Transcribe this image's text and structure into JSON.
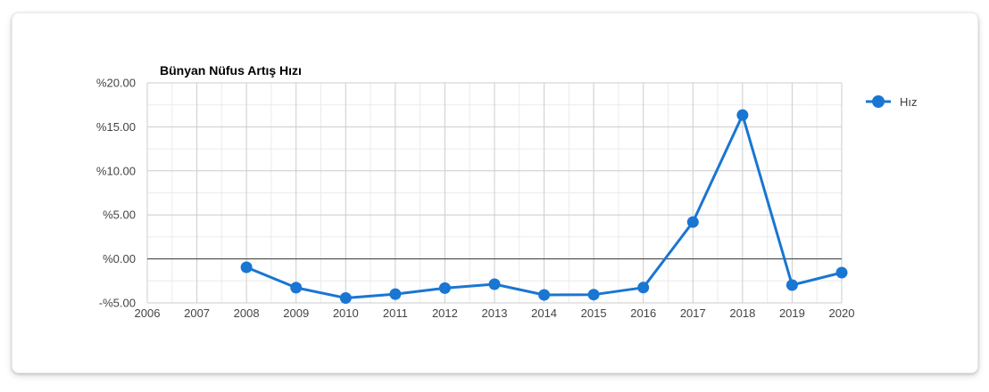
{
  "chart_data": {
    "type": "line",
    "title": "Bünyan Nüfus Artış Hızı",
    "x": [
      2008,
      2009,
      2010,
      2011,
      2012,
      2013,
      2014,
      2015,
      2016,
      2017,
      2018,
      2019,
      2020
    ],
    "series": [
      {
        "name": "Hız",
        "color": "#1976d2",
        "values": [
          -0.95,
          -3.27,
          -4.44,
          -4.0,
          -3.32,
          -2.87,
          -4.09,
          -4.06,
          -3.26,
          4.19,
          16.35,
          -2.98,
          -1.56
        ]
      }
    ],
    "xlabel": "",
    "ylabel": "",
    "x_axis": {
      "range": [
        2006,
        2020
      ],
      "tick_values": [
        2006,
        2007,
        2008,
        2009,
        2010,
        2011,
        2012,
        2013,
        2014,
        2015,
        2016,
        2017,
        2018,
        2019,
        2020
      ],
      "tick_labels": [
        "2006",
        "2007",
        "2008",
        "2009",
        "2010",
        "2011",
        "2012",
        "2013",
        "2014",
        "2015",
        "2016",
        "2017",
        "2018",
        "2019",
        "2020"
      ],
      "minor_step": 0.5
    },
    "y_axis": {
      "range": [
        -5,
        20
      ],
      "tick_values": [
        20,
        15,
        10,
        5,
        0,
        -5
      ],
      "tick_labels": [
        "%20.00",
        "%15.00",
        "%10.00",
        "%5.00",
        "%0.00",
        "-%5.00"
      ],
      "minor_step": 2.5
    },
    "grid": true,
    "legend": {
      "position": "top-right",
      "label": "Hız"
    },
    "colors": {
      "series": "#1976d2",
      "grid_major": "#cccccc",
      "grid_minor": "#ebebeb",
      "zero_line": "#333333",
      "tick_label": "#444444",
      "title": "#000000",
      "legend_text": "#3c3c3c"
    }
  }
}
